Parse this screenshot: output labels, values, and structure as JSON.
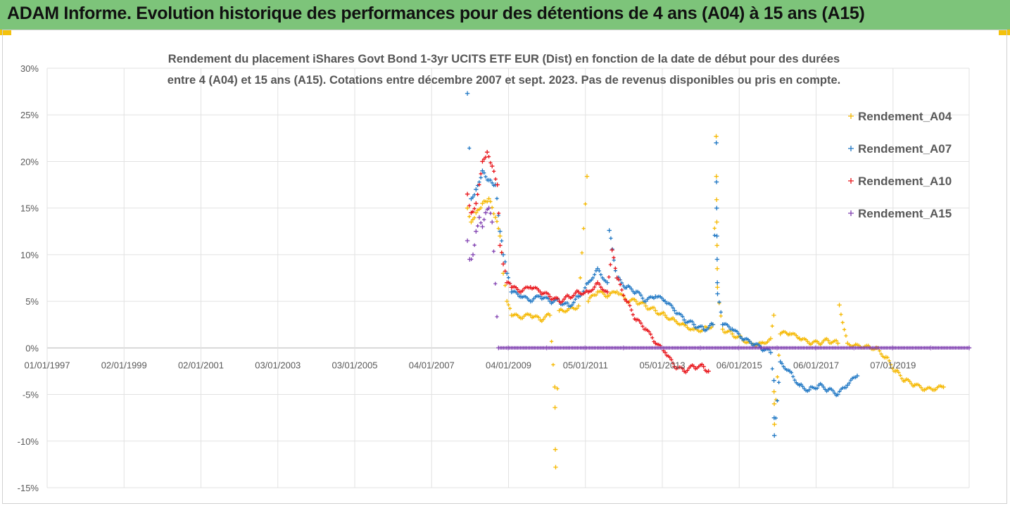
{
  "banner": {
    "title": "ADAM Informe. Evolution historique des performances pour des détentions de 4 ans (A04) à 15 ans (A15)",
    "color": "#7dc47a",
    "corner_color": "#f4c20d"
  },
  "chart_data": {
    "type": "scatter",
    "title_line1": "Rendement du placement iShares Govt Bond 1-3yr UCITS ETF EUR (Dist) en fonction de la date de début pour des durées",
    "title_line2": "entre 4 (A04) et 15 ans (A15). Cotations entre décembre 2007 et sept. 2023. Pas de revenus disponibles ou pris en compte.",
    "marker": "+",
    "x_axis": {
      "type": "date",
      "range": [
        "1997-01-01",
        "2020-12-31"
      ],
      "ticks": [
        "1997-01-01",
        "1999-01-02",
        "2001-01-02",
        "2003-01-03",
        "2005-01-03",
        "2007-01-04",
        "2009-01-04",
        "2011-01-05",
        "2013-01-05",
        "2015-01-06",
        "2017-01-06",
        "2019-01-07"
      ],
      "tick_labels": [
        "01/01/1997",
        "02/01/1999",
        "02/01/2001",
        "03/01/2003",
        "03/01/2005",
        "04/01/2007",
        "04/01/2009",
        "05/01/2011",
        "05/01/2013",
        "06/01/2015",
        "06/01/2017",
        "07/01/2019"
      ]
    },
    "y_axis": {
      "range": [
        -15,
        30
      ],
      "ticks": [
        -15,
        -10,
        -5,
        0,
        5,
        10,
        15,
        20,
        25,
        30
      ],
      "tick_labels": [
        "-15%",
        "-10%",
        "-5%",
        "0%",
        "5%",
        "10%",
        "15%",
        "20%",
        "25%",
        "30%"
      ]
    },
    "grid": {
      "vertical": true,
      "horizontal": true
    },
    "legend_position": "right",
    "series": [
      {
        "name": "Rendement_A04",
        "color": "#f5b800",
        "points": [
          [
            "2007-12-10",
            15.0
          ],
          [
            "2008-01-15",
            13.5
          ],
          [
            "2008-03-01",
            14.5
          ],
          [
            "2008-05-01",
            15.5
          ],
          [
            "2008-07-01",
            16.0
          ],
          [
            "2008-09-01",
            14.0
          ],
          [
            "2008-10-15",
            12.0
          ],
          [
            "2008-11-15",
            8.0
          ],
          [
            "2008-12-20",
            5.0
          ],
          [
            "2009-02-01",
            3.5
          ],
          [
            "2009-05-01",
            3.2
          ],
          [
            "2009-08-01",
            3.5
          ],
          [
            "2009-11-01",
            3.0
          ],
          [
            "2010-02-01",
            3.5
          ],
          [
            "2010-05-01",
            4.0
          ],
          [
            "2010-08-01",
            4.2
          ],
          [
            "2010-11-01",
            4.5
          ],
          [
            "2011-02-01",
            5.0
          ],
          [
            "2011-05-01",
            6.0
          ],
          [
            "2011-08-01",
            5.5
          ],
          [
            "2011-11-01",
            6.0
          ],
          [
            "2012-02-01",
            5.0
          ],
          [
            "2012-05-01",
            5.0
          ],
          [
            "2012-08-01",
            4.5
          ],
          [
            "2012-11-01",
            4.0
          ],
          [
            "2013-02-01",
            3.5
          ],
          [
            "2013-05-01",
            3.0
          ],
          [
            "2013-08-01",
            2.5
          ],
          [
            "2013-11-01",
            2.0
          ],
          [
            "2014-02-01",
            2.0
          ],
          [
            "2014-05-01",
            2.5
          ],
          [
            "2014-08-01",
            2.0
          ],
          [
            "2014-11-01",
            1.5
          ],
          [
            "2015-02-01",
            1.0
          ],
          [
            "2015-05-01",
            0.5
          ],
          [
            "2015-08-01",
            0.5
          ],
          [
            "2015-11-01",
            1.0
          ],
          [
            "2016-02-01",
            1.5
          ],
          [
            "2016-05-01",
            1.5
          ],
          [
            "2016-08-01",
            1.0
          ],
          [
            "2016-11-01",
            0.5
          ],
          [
            "2017-02-01",
            0.5
          ],
          [
            "2017-05-01",
            0.8
          ],
          [
            "2017-08-01",
            0.5
          ],
          [
            "2017-11-01",
            0.5
          ],
          [
            "2018-02-01",
            0.3
          ],
          [
            "2018-05-01",
            0.2
          ],
          [
            "2018-08-01",
            0.0
          ],
          [
            "2018-11-01",
            -1.0
          ],
          [
            "2019-02-01",
            -2.5
          ],
          [
            "2019-05-01",
            -3.5
          ],
          [
            "2019-08-01",
            -4.0
          ],
          [
            "2019-11-01",
            -4.5
          ],
          [
            "2020-02-01",
            -4.5
          ],
          [
            "2020-05-01",
            -4.2
          ],
          [
            "2010-03-20",
            -4.2
          ],
          [
            "2010-03-22",
            -6.4
          ],
          [
            "2010-03-25",
            -10.9
          ],
          [
            "2010-03-28",
            -12.8
          ],
          [
            "2011-01-20",
            18.4
          ],
          [
            "2014-06-01",
            22.7
          ],
          [
            "2014-06-03",
            18.4
          ],
          [
            "2014-06-05",
            15.9
          ],
          [
            "2014-06-07",
            13.5
          ],
          [
            "2014-06-09",
            11.0
          ],
          [
            "2014-06-11",
            8.5
          ],
          [
            "2014-06-13",
            6.5
          ],
          [
            "2015-12-01",
            3.5
          ],
          [
            "2015-12-03",
            -4.7
          ],
          [
            "2015-12-05",
            -6.0
          ],
          [
            "2015-12-07",
            -8.2
          ],
          [
            "2017-08-15",
            4.6
          ]
        ]
      },
      {
        "name": "Rendement_A07",
        "color": "#1f77c4",
        "points": [
          [
            "2007-12-10",
            27.3
          ],
          [
            "2008-01-15",
            16.0
          ],
          [
            "2008-03-01",
            17.0
          ],
          [
            "2008-05-01",
            19.0
          ],
          [
            "2008-07-01",
            18.0
          ],
          [
            "2008-09-01",
            17.5
          ],
          [
            "2008-10-15",
            12.5
          ],
          [
            "2008-11-15",
            10.0
          ],
          [
            "2008-12-20",
            8.0
          ],
          [
            "2009-02-01",
            6.0
          ],
          [
            "2009-05-01",
            5.5
          ],
          [
            "2009-08-01",
            5.0
          ],
          [
            "2009-11-01",
            5.5
          ],
          [
            "2010-02-01",
            5.0
          ],
          [
            "2010-05-01",
            5.0
          ],
          [
            "2010-08-01",
            4.5
          ],
          [
            "2010-11-01",
            5.5
          ],
          [
            "2011-02-01",
            7.0
          ],
          [
            "2011-05-01",
            8.5
          ],
          [
            "2011-08-01",
            7.0
          ],
          [
            "2011-11-01",
            7.5
          ],
          [
            "2012-02-01",
            6.5
          ],
          [
            "2012-05-01",
            6.0
          ],
          [
            "2012-08-01",
            5.0
          ],
          [
            "2012-11-01",
            5.5
          ],
          [
            "2013-02-01",
            5.0
          ],
          [
            "2013-05-01",
            4.0
          ],
          [
            "2013-08-01",
            3.0
          ],
          [
            "2013-11-01",
            2.5
          ],
          [
            "2014-02-01",
            2.0
          ],
          [
            "2014-05-01",
            2.5
          ],
          [
            "2014-08-01",
            2.5
          ],
          [
            "2014-11-01",
            2.0
          ],
          [
            "2015-02-01",
            1.0
          ],
          [
            "2015-05-01",
            0.5
          ],
          [
            "2015-08-01",
            0.0
          ],
          [
            "2015-11-01",
            -0.5
          ],
          [
            "2016-02-01",
            -1.5
          ],
          [
            "2016-05-01",
            -2.5
          ],
          [
            "2016-08-01",
            -4.0
          ],
          [
            "2016-11-01",
            -4.5
          ],
          [
            "2017-02-01",
            -4.0
          ],
          [
            "2017-05-01",
            -4.5
          ],
          [
            "2017-08-01",
            -5.0
          ],
          [
            "2017-11-01",
            -4.0
          ],
          [
            "2018-02-01",
            -3.0
          ],
          [
            "2011-08-20",
            12.6
          ],
          [
            "2014-06-02",
            22.0
          ],
          [
            "2014-06-04",
            17.8
          ],
          [
            "2014-06-06",
            15.0
          ],
          [
            "2014-06-08",
            12.0
          ],
          [
            "2014-06-10",
            9.5
          ],
          [
            "2014-06-12",
            7.0
          ],
          [
            "2014-06-14",
            5.8
          ],
          [
            "2015-12-02",
            -3.5
          ],
          [
            "2015-12-04",
            -7.5
          ],
          [
            "2015-12-06",
            -9.4
          ]
        ]
      },
      {
        "name": "Rendement_A10",
        "color": "#e8141a",
        "points": [
          [
            "2007-12-10",
            16.5
          ],
          [
            "2008-01-15",
            14.5
          ],
          [
            "2008-03-01",
            15.5
          ],
          [
            "2008-05-01",
            20.0
          ],
          [
            "2008-06-15",
            21.0
          ],
          [
            "2008-08-01",
            19.5
          ],
          [
            "2008-09-20",
            17.5
          ],
          [
            "2008-10-15",
            11.0
          ],
          [
            "2008-11-15",
            9.0
          ],
          [
            "2008-12-20",
            7.0
          ],
          [
            "2009-02-01",
            6.5
          ],
          [
            "2009-05-01",
            6.0
          ],
          [
            "2009-08-01",
            6.5
          ],
          [
            "2009-11-01",
            6.0
          ],
          [
            "2010-02-01",
            5.5
          ],
          [
            "2010-05-01",
            5.0
          ],
          [
            "2010-08-01",
            5.5
          ],
          [
            "2010-11-01",
            6.0
          ],
          [
            "2011-02-01",
            6.0
          ],
          [
            "2011-05-01",
            7.0
          ],
          [
            "2011-08-01",
            6.0
          ],
          [
            "2011-11-01",
            7.5
          ],
          [
            "2012-02-01",
            5.0
          ],
          [
            "2012-05-01",
            3.0
          ],
          [
            "2012-08-01",
            2.0
          ],
          [
            "2012-11-01",
            0.5
          ],
          [
            "2013-02-01",
            -0.5
          ],
          [
            "2013-05-01",
            -2.0
          ],
          [
            "2013-08-01",
            -2.5
          ],
          [
            "2013-11-01",
            -2.0
          ],
          [
            "2014-02-01",
            -2.0
          ],
          [
            "2014-03-20",
            -2.5
          ],
          [
            "2011-09-15",
            10.5
          ]
        ]
      },
      {
        "name": "Rendement_A15",
        "color": "#7f3fb0",
        "points": [
          [
            "2007-12-10",
            11.5
          ],
          [
            "2008-01-01",
            9.5
          ],
          [
            "2008-02-01",
            10.0
          ],
          [
            "2008-03-01",
            12.5
          ],
          [
            "2008-04-01",
            14.0
          ],
          [
            "2008-05-01",
            13.0
          ],
          [
            "2008-06-01",
            14.5
          ],
          [
            "2008-07-01",
            15.0
          ],
          [
            "2008-08-01",
            13.5
          ],
          [
            "2008-10-01",
            0.0
          ],
          [
            "2009-01-01",
            0.0
          ],
          [
            "2010-01-01",
            0.0
          ],
          [
            "2011-01-01",
            0.0
          ],
          [
            "2012-01-01",
            0.0
          ],
          [
            "2013-01-01",
            0.0
          ],
          [
            "2014-01-01",
            0.0
          ],
          [
            "2015-01-01",
            0.0
          ],
          [
            "2016-01-01",
            0.0
          ],
          [
            "2017-01-01",
            0.0
          ],
          [
            "2018-01-01",
            0.0
          ],
          [
            "2019-01-01",
            0.0
          ],
          [
            "2020-01-01",
            0.0
          ],
          [
            "2020-12-31",
            0.0
          ]
        ]
      }
    ]
  }
}
